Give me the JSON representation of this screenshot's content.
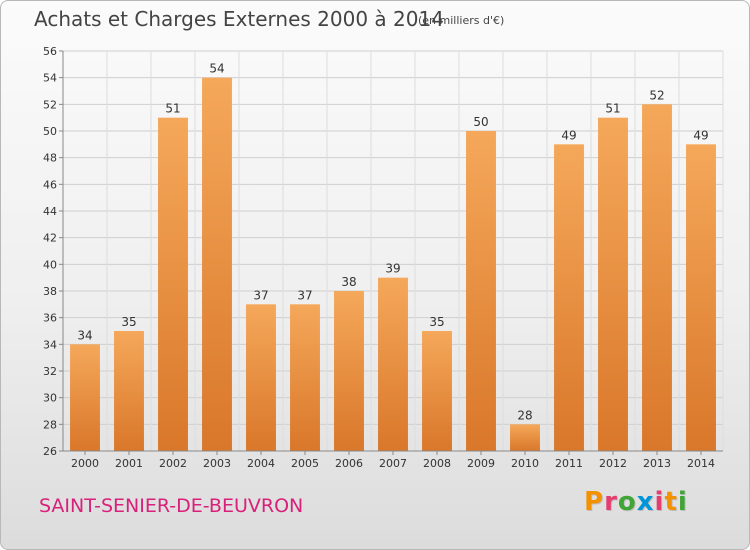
{
  "header": {
    "title": "Achats et Charges Externes 2000 à 2014",
    "unit_note": "(en milliers d'€)"
  },
  "footer": {
    "commune": "SAINT-SENIER-DE-BEUVRON",
    "logo_letters": [
      "P",
      "r",
      "o",
      "x",
      "i",
      "t",
      "i"
    ]
  },
  "colors": {
    "bar_light": "#f5a85a",
    "bar_dark": "#d9772a",
    "commune_text": "#d9207a",
    "logo": [
      "#f39200",
      "#e63d6f",
      "#3fa535",
      "#0095d8",
      "#e63d6f",
      "#f39200",
      "#3fa535"
    ]
  },
  "chart_data": {
    "type": "bar",
    "title": "Achats et Charges Externes 2000 à 2014",
    "subtitle": "(en milliers d'€)",
    "xlabel": "",
    "ylabel": "",
    "categories": [
      "2000",
      "2001",
      "2002",
      "2003",
      "2004",
      "2005",
      "2006",
      "2007",
      "2008",
      "2009",
      "2010",
      "2011",
      "2012",
      "2013",
      "2014"
    ],
    "values": [
      34,
      35,
      51,
      54,
      37,
      37,
      38,
      39,
      35,
      50,
      28,
      49,
      51,
      52,
      49
    ],
    "ylim": [
      26,
      56
    ],
    "yticks": [
      26,
      28,
      30,
      32,
      34,
      36,
      38,
      40,
      42,
      44,
      46,
      48,
      50,
      52,
      54,
      56
    ],
    "grid": true,
    "legend": "none",
    "data_labels": true
  }
}
